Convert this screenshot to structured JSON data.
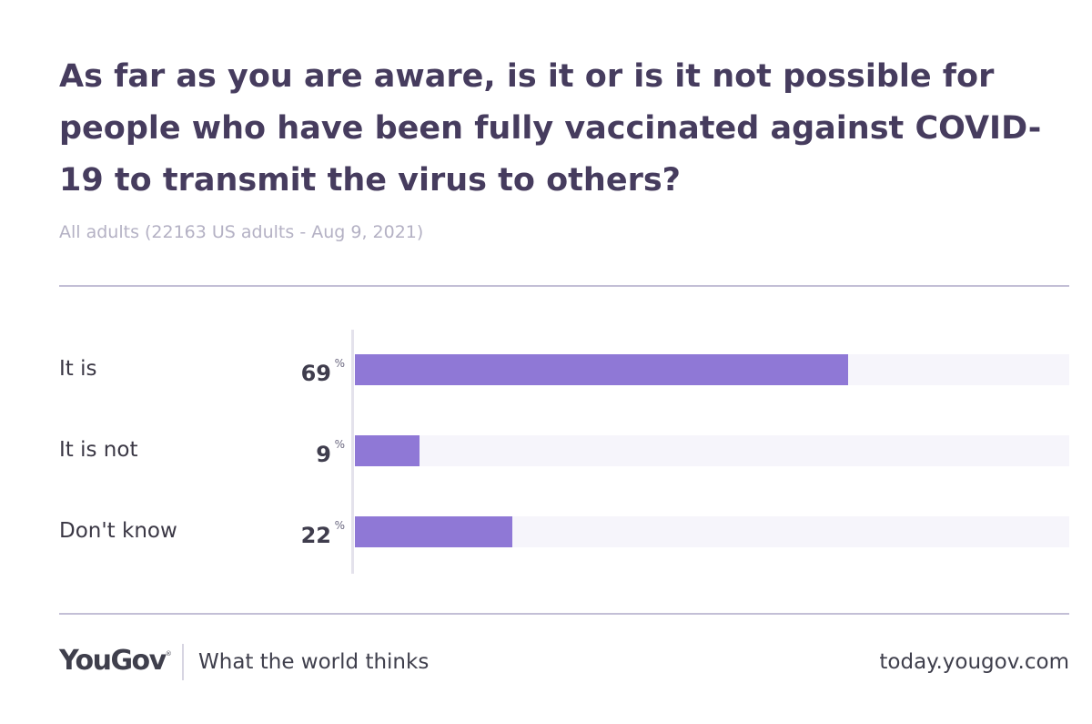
{
  "chart_data": {
    "type": "bar",
    "orientation": "horizontal",
    "title": "As far as you are aware, is it or is it not possible for people who have been fully vaccinated against COVID-19 to transmit the virus to others?",
    "subtitle": "All adults (22163 US adults - Aug 9, 2021)",
    "categories": [
      "It is",
      "It is not",
      "Don't know"
    ],
    "values": [
      69,
      9,
      22
    ],
    "value_labels": [
      "69",
      "9",
      "22"
    ],
    "unit": "%",
    "xlim": [
      0,
      100
    ],
    "grid": false,
    "colors": {
      "bar": "#8f78d6",
      "track": "#f6f5fb",
      "title": "#463c5e",
      "subtitle": "#b4b1c4"
    }
  },
  "footer": {
    "brand": "YouGov",
    "brand_mark": "®",
    "tagline": "What the world thinks",
    "url": "today.yougov.com"
  }
}
